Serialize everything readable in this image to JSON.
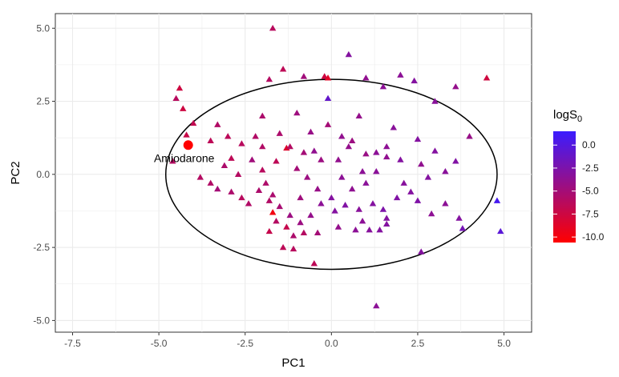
{
  "chart_data": {
    "type": "scatter",
    "xlabel": "PC1",
    "ylabel": "PC2",
    "xlim": [
      -8.0,
      5.8
    ],
    "ylim": [
      -5.4,
      5.5
    ],
    "x_ticks": [
      -7.5,
      -5.0,
      -2.5,
      0.0,
      2.5,
      5.0
    ],
    "x_tick_labels": [
      "-7.5",
      "-5.0",
      "-2.5",
      "0.0",
      "2.5",
      "5.0"
    ],
    "y_ticks": [
      -5.0,
      -2.5,
      0.0,
      2.5,
      5.0
    ],
    "y_tick_labels": [
      "-5.0",
      "-2.5",
      "0.0",
      "2.5",
      "5.0"
    ],
    "grid": true,
    "legend": {
      "title_main": "logS",
      "title_sub": "0",
      "position": "right",
      "labels": [
        "0.0",
        "-2.5",
        "-5.0",
        "-7.5",
        "-10.0"
      ],
      "values": [
        0.0,
        -2.5,
        -5.0,
        -7.5,
        -10.0
      ],
      "min": -10.6,
      "max": 1.5,
      "color_low": "#ff0000",
      "color_high": "#3b1cff"
    },
    "ellipse": {
      "center": [
        0.0,
        0.0
      ],
      "radii": [
        4.8,
        3.25
      ]
    },
    "highlight": {
      "label": "Amiodarone",
      "x": -4.15,
      "y": 1.0,
      "value": -9.6,
      "color": "#ff0000"
    },
    "points": [
      [
        -1.7,
        5.0,
        -6.2
      ],
      [
        0.5,
        4.1,
        -3.0
      ],
      [
        -0.2,
        3.35,
        -7.5
      ],
      [
        -0.1,
        3.3,
        -8.8
      ],
      [
        -1.4,
        3.6,
        -6.5
      ],
      [
        -1.8,
        3.25,
        -6.0
      ],
      [
        -0.8,
        3.35,
        -4.8
      ],
      [
        2.0,
        3.4,
        -3.5
      ],
      [
        1.0,
        3.3,
        -3.8
      ],
      [
        2.4,
        3.2,
        -3.0
      ],
      [
        3.6,
        3.0,
        -4.0
      ],
      [
        4.5,
        3.3,
        -7.6
      ],
      [
        1.5,
        3.0,
        -3.5
      ],
      [
        3.0,
        2.5,
        -3.3
      ],
      [
        -4.4,
        2.95,
        -7.5
      ],
      [
        -4.3,
        2.25,
        -7.5
      ],
      [
        -4.5,
        2.6,
        -6.2
      ],
      [
        -4.2,
        1.35,
        -7.2
      ],
      [
        -4.6,
        0.45,
        -6.0
      ],
      [
        -4.0,
        1.75,
        -6.8
      ],
      [
        -3.5,
        1.15,
        -6.5
      ],
      [
        -3.3,
        1.7,
        -5.8
      ],
      [
        -2.6,
        1.05,
        -6.2
      ],
      [
        -2.0,
        0.95,
        -5.8
      ],
      [
        -2.9,
        0.55,
        -6.5
      ],
      [
        -3.1,
        0.3,
        -5.5
      ],
      [
        -2.3,
        0.5,
        -4.8
      ],
      [
        -2.0,
        0.15,
        -6.2
      ],
      [
        -1.6,
        0.45,
        -6.5
      ],
      [
        -1.3,
        0.9,
        -8.5
      ],
      [
        -1.2,
        0.95,
        -6.0
      ],
      [
        -0.8,
        0.75,
        -5.0
      ],
      [
        -0.5,
        0.8,
        -3.8
      ],
      [
        -0.6,
        1.45,
        -4.2
      ],
      [
        -0.1,
        1.7,
        -5.0
      ],
      [
        0.3,
        1.3,
        -3.8
      ],
      [
        0.6,
        1.15,
        -4.5
      ],
      [
        1.0,
        0.7,
        -4.3
      ],
      [
        1.3,
        0.75,
        -3.5
      ],
      [
        1.6,
        0.6,
        -3.8
      ],
      [
        2.0,
        0.5,
        -3.0
      ],
      [
        2.6,
        0.35,
        -3.8
      ],
      [
        3.0,
        0.8,
        -3.0
      ],
      [
        3.6,
        0.45,
        -2.8
      ],
      [
        4.0,
        1.3,
        -4.2
      ],
      [
        -3.8,
        -0.1,
        -6.0
      ],
      [
        -3.5,
        -0.3,
        -5.8
      ],
      [
        -2.9,
        -0.6,
        -5.5
      ],
      [
        -2.6,
        -0.8,
        -6.2
      ],
      [
        -2.1,
        -0.55,
        -5.5
      ],
      [
        -1.8,
        -0.9,
        -5.8
      ],
      [
        -1.5,
        -1.1,
        -5.2
      ],
      [
        -1.2,
        -1.4,
        -4.5
      ],
      [
        -0.9,
        -1.65,
        -4.5
      ],
      [
        -0.6,
        -1.4,
        -4.0
      ],
      [
        -0.3,
        -1.0,
        -3.5
      ],
      [
        0.0,
        -0.8,
        -3.0
      ],
      [
        0.4,
        -1.05,
        -2.8
      ],
      [
        0.8,
        -1.2,
        -3.3
      ],
      [
        1.2,
        -1.0,
        -3.0
      ],
      [
        1.5,
        -1.2,
        -2.6
      ],
      [
        1.9,
        -0.8,
        -2.8
      ],
      [
        2.3,
        -0.6,
        -3.0
      ],
      [
        2.5,
        -0.9,
        -2.7
      ],
      [
        2.9,
        -1.35,
        -3.6
      ],
      [
        3.3,
        -1.0,
        -3.5
      ],
      [
        3.7,
        -1.5,
        -3.0
      ],
      [
        1.6,
        -1.5,
        -3.0
      ],
      [
        0.9,
        -1.6,
        -3.5
      ],
      [
        0.1,
        -1.25,
        -3.0
      ],
      [
        -1.7,
        -1.3,
        -9.8
      ],
      [
        -1.6,
        -1.6,
        -6.0
      ],
      [
        -1.3,
        -1.8,
        -7.0
      ],
      [
        -1.1,
        -2.1,
        -5.5
      ],
      [
        -0.8,
        -2.0,
        -6.0
      ],
      [
        -1.4,
        -2.5,
        -6.5
      ],
      [
        -1.8,
        -1.95,
        -7.0
      ],
      [
        -1.1,
        -2.55,
        -6.2
      ],
      [
        -0.5,
        -3.05,
        -6.5
      ],
      [
        -0.4,
        -2.0,
        -5.0
      ],
      [
        0.2,
        -1.8,
        -4.0
      ],
      [
        0.7,
        -1.9,
        -3.5
      ],
      [
        1.1,
        -1.9,
        -3.2
      ],
      [
        1.4,
        -1.9,
        -3.0
      ],
      [
        1.6,
        -1.7,
        -3.0
      ],
      [
        2.6,
        -2.65,
        -3.0
      ],
      [
        3.8,
        -1.85,
        -2.0
      ],
      [
        4.8,
        -0.9,
        0.8
      ],
      [
        4.9,
        -1.95,
        -0.4
      ],
      [
        1.3,
        -4.5,
        -3.5
      ],
      [
        1.6,
        0.95,
        -3.6
      ],
      [
        0.5,
        0.95,
        -4.0
      ],
      [
        -0.3,
        0.5,
        -4.5
      ],
      [
        -1.5,
        1.4,
        -5.5
      ],
      [
        -2.4,
        -1.0,
        -5.8
      ],
      [
        -3.3,
        -0.5,
        -5.0
      ],
      [
        0.9,
        0.1,
        -3.5
      ],
      [
        0.3,
        -0.1,
        -3.5
      ],
      [
        -0.7,
        -0.1,
        -4.5
      ],
      [
        -1.0,
        0.2,
        -5.0
      ],
      [
        1.3,
        0.1,
        -3.4
      ],
      [
        2.1,
        -0.3,
        -3.2
      ],
      [
        2.8,
        -0.1,
        -3.0
      ],
      [
        3.3,
        0.1,
        -3.3
      ],
      [
        -0.1,
        2.6,
        -1.0
      ],
      [
        -1.0,
        2.1,
        -4.6
      ],
      [
        -2.0,
        2.0,
        -5.5
      ],
      [
        0.8,
        2.0,
        -4.0
      ],
      [
        1.8,
        1.6,
        -3.3
      ],
      [
        2.5,
        1.2,
        -3.0
      ],
      [
        -0.4,
        -0.5,
        -4.2
      ],
      [
        0.6,
        -0.5,
        -3.7
      ],
      [
        1.0,
        -0.3,
        -3.4
      ],
      [
        -1.9,
        -0.3,
        -5.6
      ],
      [
        -2.7,
        0.0,
        -6.0
      ],
      [
        -3.0,
        1.3,
        -6.4
      ],
      [
        -2.2,
        1.3,
        -5.8
      ],
      [
        -1.7,
        -0.7,
        -5.4
      ],
      [
        -0.9,
        -0.8,
        -4.7
      ],
      [
        0.2,
        0.5,
        -3.9
      ]
    ]
  }
}
